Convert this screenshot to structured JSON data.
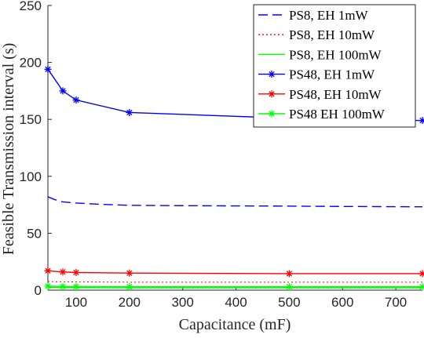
{
  "chart_data": {
    "type": "line",
    "xlabel": "Capacitance (mF)",
    "ylabel": "Feasible Transmission interval (s)",
    "xlim": [
      47,
      750
    ],
    "ylim": [
      0,
      250
    ],
    "x_ticks": [
      100,
      200,
      300,
      400,
      500,
      600,
      700
    ],
    "y_ticks": [
      0,
      50,
      100,
      150,
      200,
      250
    ],
    "grid": false,
    "legend_position": "top-right",
    "series": [
      {
        "name": "PS8, EH 1mW",
        "color": "#0000ff",
        "style": "dashed",
        "marker": "none",
        "x": [
          47,
          60,
          75,
          100,
          150,
          200,
          300,
          400,
          500,
          600,
          700,
          750
        ],
        "y": [
          82,
          79.5,
          77.5,
          76.5,
          75.3,
          74.5,
          74.2,
          74,
          73.8,
          73.5,
          73.3,
          73.2
        ]
      },
      {
        "name": "PS8, EH 10mW",
        "color": "#ff0000",
        "style": "dotted",
        "marker": "none",
        "x": [
          47,
          100,
          200,
          500,
          750
        ],
        "y": [
          7.5,
          7.2,
          7,
          7,
          7
        ]
      },
      {
        "name": "PS8, EH 100mW",
        "color": "#00ff00",
        "style": "solid",
        "marker": "none",
        "x": [
          47,
          100,
          200,
          500,
          750
        ],
        "y": [
          2.5,
          2.2,
          2.1,
          2.1,
          2.1
        ]
      },
      {
        "name": "PS48, EH 1mW",
        "color": "#0000ff",
        "style": "solid",
        "marker": "asterisk",
        "x": [
          47,
          75,
          100,
          200,
          500,
          750
        ],
        "y": [
          194,
          175,
          167,
          156,
          151,
          149
        ]
      },
      {
        "name": "PS48, EH 10mW",
        "color": "#ff0000",
        "style": "solid",
        "marker": "asterisk",
        "x": [
          47,
          75,
          100,
          200,
          500,
          750
        ],
        "y": [
          17,
          16,
          15.5,
          15,
          14.5,
          14.5
        ]
      },
      {
        "name": "PS48 EH 100mW",
        "color": "#00ff00",
        "style": "solid",
        "marker": "asterisk",
        "x": [
          47,
          75,
          100,
          200,
          500,
          750
        ],
        "y": [
          3.5,
          3.2,
          3.1,
          3,
          3,
          3
        ]
      }
    ]
  }
}
